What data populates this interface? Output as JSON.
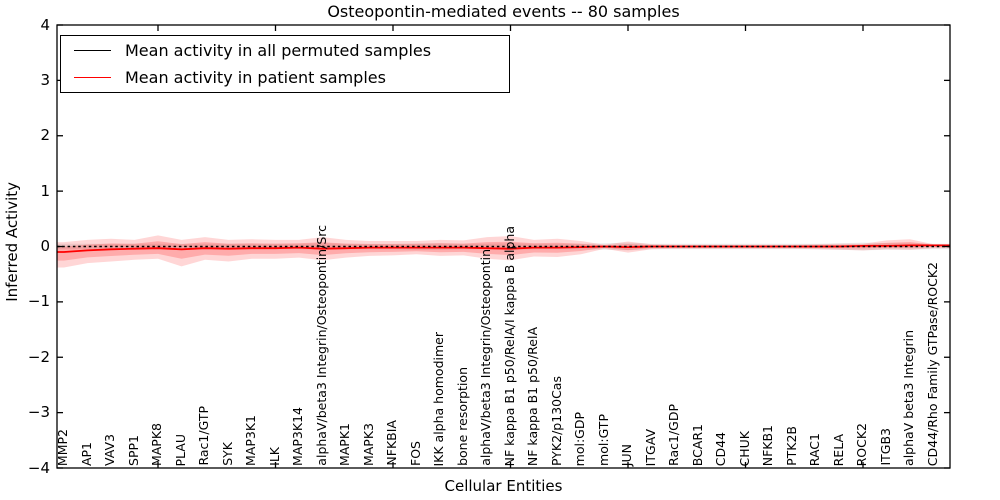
{
  "title": "Osteopontin-mediated events -- 80 samples",
  "axes": {
    "xlabel": "Cellular Entities",
    "ylabel": "Inferred Activity",
    "ytick_labels": [
      "4",
      "3",
      "2",
      "1",
      "0",
      "−1",
      "−2",
      "−3",
      "−4"
    ]
  },
  "legend": {
    "items": [
      {
        "label": "Mean activity in all permuted samples",
        "color": "#000000"
      },
      {
        "label": "Mean activity in patient samples",
        "color": "#ff0000"
      }
    ]
  },
  "chart_data": {
    "type": "line",
    "title": "Osteopontin-mediated events -- 80 samples",
    "xlabel": "Cellular Entities",
    "ylabel": "Inferred Activity",
    "ylim": [
      -4,
      4
    ],
    "yticks": [
      4,
      3,
      2,
      1,
      0,
      -1,
      -2,
      -3,
      -4
    ],
    "grid": false,
    "legend_position": "upper left",
    "categories": [
      "MMP2",
      "AP1",
      "VAV3",
      "SPP1",
      "MAPK8",
      "PLAU",
      "Rac1/GTP",
      "SYK",
      "MAP3K1",
      "ILK",
      "MAP3K14",
      "alphaV/beta3 Integrin/Osteopontin/Src",
      "MAPK1",
      "MAPK3",
      "NFKBIA",
      "FOS",
      "IKK alpha homodimer",
      "bone resorption",
      "alphaV/beta3 Integrin/Osteopontin",
      "NF kappa B1 p50/RelA/I kappa B alpha",
      "NF kappa B1 p50/RelA",
      "PYK2/p130Cas",
      "mol:GDP",
      "mol:GTP",
      "JUN",
      "ITGAV",
      "Rac1/GDP",
      "BCAR1",
      "CD44",
      "CHUK",
      "NFKB1",
      "PTK2B",
      "RAC1",
      "RELA",
      "ROCK2",
      "ITGB3",
      "alphaV beta3 Integrin",
      "CD44/Rho Family GTPase/ROCK2"
    ],
    "series": [
      {
        "name": "Mean activity in all permuted samples",
        "color": "#000000",
        "style": "dotted",
        "values": [
          0,
          0,
          0,
          0,
          0,
          0,
          0,
          0,
          0,
          0,
          0,
          0,
          0,
          0,
          0,
          0,
          0,
          0,
          0,
          0,
          0,
          0,
          0,
          0,
          0,
          0,
          0,
          0,
          0,
          0,
          0,
          0,
          0,
          0,
          0,
          0,
          0,
          0
        ]
      },
      {
        "name": "Mean activity in patient samples",
        "color": "#ff0000",
        "style": "solid",
        "values": [
          -0.1,
          -0.07,
          -0.05,
          -0.04,
          -0.03,
          -0.05,
          -0.03,
          -0.04,
          -0.03,
          -0.03,
          -0.02,
          -0.04,
          -0.03,
          -0.02,
          -0.02,
          -0.02,
          -0.02,
          -0.02,
          -0.03,
          -0.04,
          -0.02,
          -0.02,
          -0.01,
          0.0,
          -0.01,
          0.0,
          0.0,
          0.0,
          0.0,
          0.0,
          0.0,
          0.0,
          0.0,
          0.0,
          0.01,
          0.01,
          0.02,
          0.02
        ]
      }
    ],
    "bands": [
      {
        "name": "patient-samples-std-band",
        "color": "#ff0000",
        "opacity": 0.16,
        "inner_scale": 0.55,
        "inner_opacity": 0.2,
        "upper": [
          0.08,
          0.12,
          0.14,
          0.12,
          0.2,
          0.12,
          0.17,
          0.12,
          0.13,
          0.12,
          0.12,
          0.17,
          0.12,
          0.1,
          0.1,
          0.1,
          0.12,
          0.11,
          0.17,
          0.19,
          0.12,
          0.14,
          0.1,
          0.03,
          0.09,
          0.04,
          0.03,
          0.03,
          0.03,
          0.03,
          0.03,
          0.03,
          0.04,
          0.05,
          0.05,
          0.11,
          0.13,
          0.04
        ],
        "lower": [
          -0.38,
          -0.3,
          -0.27,
          -0.24,
          -0.22,
          -0.36,
          -0.24,
          -0.27,
          -0.22,
          -0.22,
          -0.2,
          -0.25,
          -0.2,
          -0.17,
          -0.16,
          -0.14,
          -0.17,
          -0.16,
          -0.22,
          -0.25,
          -0.18,
          -0.19,
          -0.14,
          -0.04,
          -0.11,
          -0.05,
          -0.04,
          -0.04,
          -0.04,
          -0.04,
          -0.04,
          -0.04,
          -0.05,
          -0.06,
          -0.07,
          -0.05,
          -0.06,
          -0.03
        ]
      },
      {
        "name": "permuted-samples-std-band",
        "color": "#000000",
        "opacity": 0.08,
        "upper": [
          0.05,
          0.05,
          0.05,
          0.05,
          0.05,
          0.05,
          0.05,
          0.05,
          0.05,
          0.05,
          0.05,
          0.06,
          0.05,
          0.05,
          0.05,
          0.06,
          0.06,
          0.05,
          0.05,
          0.06,
          0.05,
          0.05,
          0.05,
          0.06,
          0.07,
          0.05,
          0.05,
          0.05,
          0.05,
          0.05,
          0.05,
          0.05,
          0.05,
          0.06,
          0.07,
          0.06,
          0.06,
          0.05
        ],
        "lower": [
          -0.05,
          -0.05,
          -0.05,
          -0.05,
          -0.05,
          -0.05,
          -0.05,
          -0.05,
          -0.05,
          -0.05,
          -0.05,
          -0.06,
          -0.05,
          -0.05,
          -0.05,
          -0.06,
          -0.06,
          -0.05,
          -0.05,
          -0.06,
          -0.05,
          -0.05,
          -0.05,
          -0.06,
          -0.07,
          -0.05,
          -0.05,
          -0.05,
          -0.05,
          -0.05,
          -0.05,
          -0.05,
          -0.05,
          -0.06,
          -0.07,
          -0.06,
          -0.06,
          -0.05
        ]
      }
    ],
    "xtick_mark_indices": [
      4,
      9,
      14,
      19,
      24,
      29,
      34
    ]
  }
}
